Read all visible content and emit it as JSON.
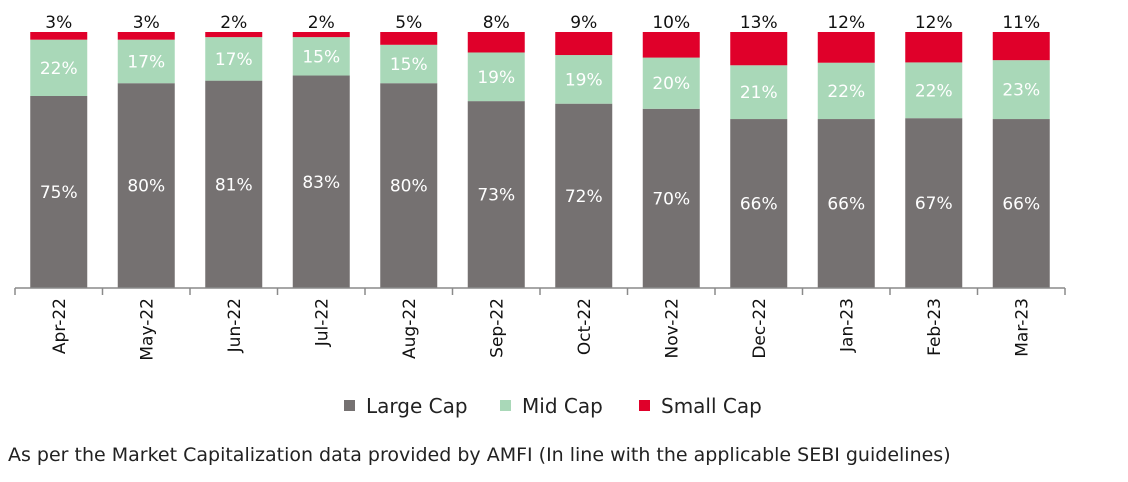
{
  "chart_data": {
    "type": "bar",
    "stacked": true,
    "percent": true,
    "categories": [
      "Apr-22",
      "May-22",
      "Jun-22",
      "Jul-22",
      "Aug-22",
      "Sep-22",
      "Oct-22",
      "Nov-22",
      "Dec-22",
      "Jan-23",
      "Feb-23",
      "Mar-23"
    ],
    "series": [
      {
        "name": "Large Cap",
        "color": "#757171",
        "label_color": "#ffffff",
        "values": [
          75,
          80,
          81,
          83,
          80,
          73,
          72,
          70,
          66,
          66,
          67,
          66
        ]
      },
      {
        "name": "Mid Cap",
        "color": "#a9d8b8",
        "label_color": "#ffffff",
        "values": [
          22,
          17,
          17,
          15,
          15,
          19,
          19,
          20,
          21,
          22,
          22,
          23
        ]
      },
      {
        "name": "Small Cap",
        "color": "#e0002a",
        "label_color": "#111111",
        "values": [
          3,
          3,
          2,
          2,
          5,
          8,
          9,
          10,
          13,
          12,
          12,
          11
        ]
      }
    ],
    "ylim": [
      0,
      100
    ],
    "legend_position": "bottom",
    "grid": false
  },
  "footnote": "As per the Market Capitalization data provided by AMFI (In line with the applicable SEBI guidelines)"
}
